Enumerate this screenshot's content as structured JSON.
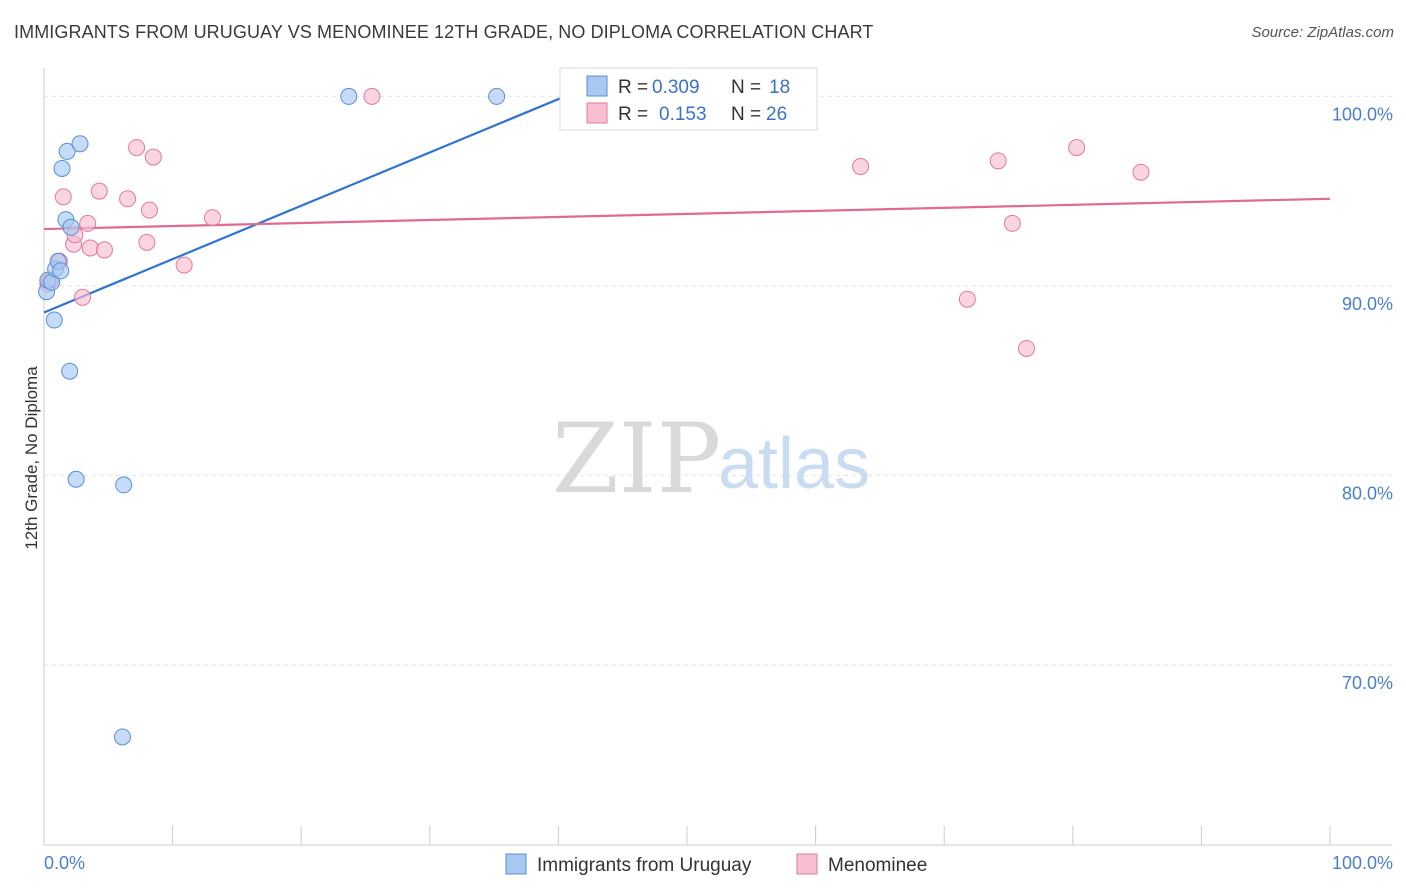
{
  "header": {
    "title": "IMMIGRANTS FROM URUGUAY VS MENOMINEE 12TH GRADE, NO DIPLOMA CORRELATION CHART",
    "source": "Source: ZipAtlas.com"
  },
  "watermark": {
    "zip": "ZIP",
    "atlas": "atlas"
  },
  "legend": {
    "rows": [
      {
        "r_label": "R =",
        "r_value": "0.309",
        "n_label": "N =",
        "n_value": "18",
        "color": "#a8c8f0",
        "stroke": "#5a8fd6"
      },
      {
        "r_label": "R =",
        "r_value": "0.153",
        "n_label": "N =",
        "n_value": "26",
        "color": "#f7bfd1",
        "stroke": "#e07a9e"
      }
    ]
  },
  "bottom_legend": {
    "items": [
      {
        "label": "Immigrants from Uruguay",
        "color": "#a8c8f0",
        "stroke": "#5a8fd6"
      },
      {
        "label": "Menominee",
        "color": "#f7bfd1",
        "stroke": "#e07a9e"
      }
    ]
  },
  "chart_data": {
    "type": "scatter",
    "title": "IMMIGRANTS FROM URUGUAY VS MENOMINEE 12TH GRADE, NO DIPLOMA CORRELATION CHART",
    "xlabel": "",
    "ylabel": "12th Grade, No Diploma",
    "xlim": [
      0,
      100
    ],
    "ylim": [
      60.5,
      101.5
    ],
    "x_tick_labels": [
      "0.0%",
      "100.0%"
    ],
    "y_ticks": [
      70,
      80,
      90,
      100
    ],
    "y_tick_labels": [
      "70.0%",
      "80.0%",
      "90.0%",
      "100.0%"
    ],
    "grid": true,
    "legend_position": "top-center",
    "series": [
      {
        "name": "Immigrants from Uruguay",
        "color": "#a8c8f0",
        "stroke": "#5a8fd6",
        "line_color": "#2f74d0",
        "trend": {
          "x0": 0,
          "y0": 88.6,
          "x1": 40.5,
          "y1": 100.0
        },
        "points": [
          [
            0.2,
            89.7
          ],
          [
            0.3,
            90.3
          ],
          [
            0.6,
            90.2
          ],
          [
            0.9,
            90.9
          ],
          [
            1.1,
            91.3
          ],
          [
            1.3,
            90.8
          ],
          [
            0.8,
            88.2
          ],
          [
            1.4,
            96.2
          ],
          [
            1.8,
            97.1
          ],
          [
            2.8,
            97.5
          ],
          [
            1.7,
            93.5
          ],
          [
            2.1,
            93.1
          ],
          [
            2.0,
            85.5
          ],
          [
            2.5,
            79.8
          ],
          [
            6.2,
            79.5
          ],
          [
            23.7,
            100.0
          ],
          [
            35.2,
            100.0
          ],
          [
            6.1,
            66.2
          ]
        ]
      },
      {
        "name": "Menominee",
        "color": "#f7bfd1",
        "stroke": "#e07a9e",
        "line_color": "#e06a94",
        "trend": {
          "x0": 0,
          "y0": 93.0,
          "x1": 100,
          "y1": 94.6
        },
        "points": [
          [
            0.3,
            90.1
          ],
          [
            1.2,
            91.3
          ],
          [
            1.5,
            94.7
          ],
          [
            2.3,
            92.2
          ],
          [
            2.4,
            92.7
          ],
          [
            3.4,
            93.3
          ],
          [
            3.6,
            92.0
          ],
          [
            4.3,
            95.0
          ],
          [
            4.7,
            91.9
          ],
          [
            3.0,
            89.4
          ],
          [
            6.5,
            94.6
          ],
          [
            7.2,
            97.3
          ],
          [
            8.2,
            94.0
          ],
          [
            8.5,
            96.8
          ],
          [
            8.0,
            92.3
          ],
          [
            10.9,
            91.1
          ],
          [
            13.1,
            93.6
          ],
          [
            25.5,
            100.0
          ],
          [
            63.5,
            96.3
          ],
          [
            71.8,
            89.3
          ],
          [
            74.2,
            96.6
          ],
          [
            75.3,
            93.3
          ],
          [
            76.4,
            86.7
          ],
          [
            80.3,
            97.3
          ],
          [
            85.3,
            96.0
          ],
          [
            0.5,
            90.3
          ]
        ]
      }
    ]
  }
}
